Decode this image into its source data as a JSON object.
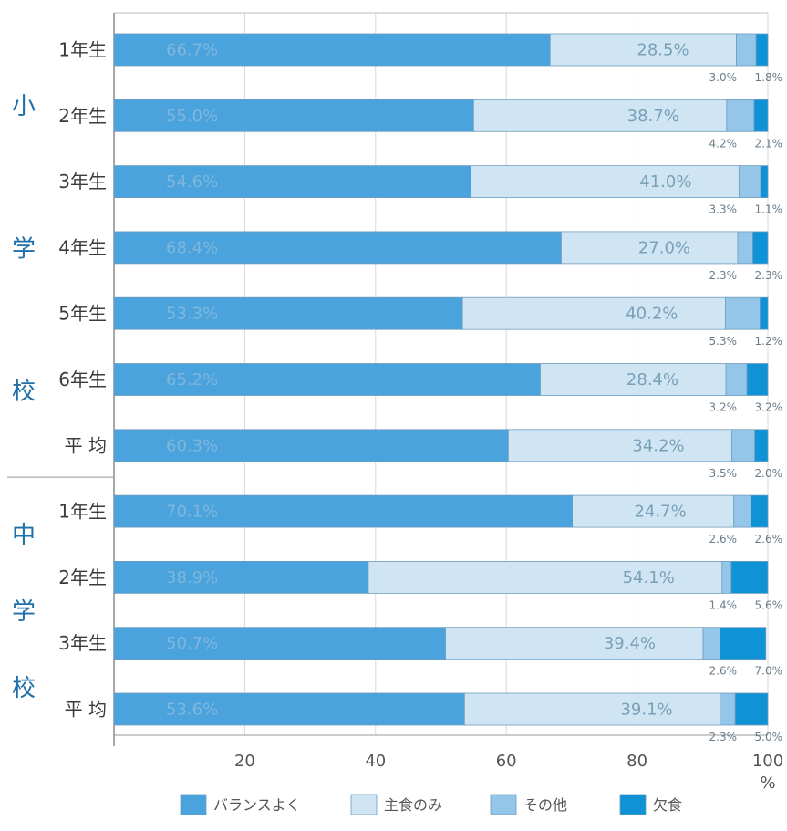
{
  "chart_data": {
    "type": "bar",
    "stacked": true,
    "orientation": "horizontal",
    "xlim": [
      0,
      100
    ],
    "xticks": [
      "20",
      "40",
      "60",
      "80",
      "100"
    ],
    "xunit": "%",
    "groups": [
      {
        "label": "小学校",
        "rows": [
          0,
          1,
          2,
          3,
          4,
          5,
          6
        ]
      },
      {
        "label": "中学校",
        "rows": [
          7,
          8,
          9,
          10
        ]
      }
    ],
    "categories": [
      "1年生",
      "2年生",
      "3年生",
      "4年生",
      "5年生",
      "6年生",
      "平 均",
      "1年生",
      "2年生",
      "3年生",
      "平 均"
    ],
    "series": [
      {
        "name": "バランスよく",
        "color": "#4aa3dc",
        "values": [
          66.7,
          55.0,
          54.6,
          68.4,
          53.3,
          65.2,
          60.3,
          70.1,
          38.9,
          50.7,
          53.6
        ],
        "labels": [
          "66.7%",
          "55.0%",
          "54.6%",
          "68.4%",
          "53.3%",
          "65.2%",
          "60.3%",
          "70.1%",
          "38.9%",
          "50.7%",
          "53.6%"
        ]
      },
      {
        "name": "主食のみ",
        "color": "#cfe5f3",
        "values": [
          28.5,
          38.7,
          41.0,
          27.0,
          40.2,
          28.4,
          34.2,
          24.7,
          54.1,
          39.4,
          39.1
        ],
        "labels": [
          "28.5%",
          "38.7%",
          "41.0%",
          "27.0%",
          "40.2%",
          "28.4%",
          "34.2%",
          "24.7%",
          "54.1%",
          "39.4%",
          "39.1%"
        ]
      },
      {
        "name": "その他",
        "color": "#93c6e8",
        "values": [
          3.0,
          4.2,
          3.3,
          2.3,
          5.3,
          3.2,
          3.5,
          2.6,
          1.4,
          2.6,
          2.3
        ],
        "labels": [
          "3.0%",
          "4.2%",
          "3.3%",
          "2.3%",
          "5.3%",
          "3.2%",
          "3.5%",
          "2.6%",
          "1.4%",
          "2.6%",
          "2.3%"
        ]
      },
      {
        "name": "欠食",
        "color": "#0f93d6",
        "values": [
          1.8,
          2.1,
          1.1,
          2.3,
          1.2,
          3.2,
          2.0,
          2.6,
          5.6,
          7.0,
          5.0
        ],
        "labels": [
          "1.8%",
          "2.1%",
          "1.1%",
          "2.3%",
          "1.2%",
          "3.2%",
          "2.0%",
          "2.6%",
          "5.6%",
          "7.0%",
          "5.0%"
        ]
      }
    ],
    "legend": {
      "position": "bottom"
    },
    "grid": true
  }
}
